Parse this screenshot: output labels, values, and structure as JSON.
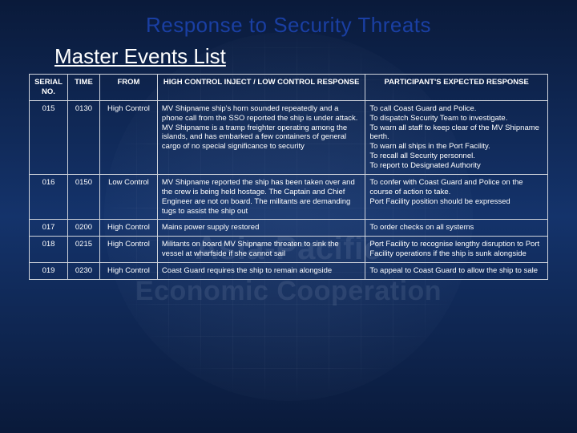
{
  "colors": {
    "bg_top": "#0a1a3a",
    "bg_mid": "#14336b",
    "title_color": "#1a3fa3",
    "subtitle_color": "#ffffff",
    "table_border": "#d0d4dc",
    "table_text": "#ffffff",
    "watermark_text": "rgba(220,230,245,0.10)"
  },
  "title": "Response to Security Threats",
  "subtitle": "Master Events List",
  "watermark": {
    "line1": "Asia-Pacific",
    "line2": "Economic Cooperation"
  },
  "table": {
    "headers": {
      "serial": "SERIAL NO.",
      "time": "TIME",
      "from": "FROM",
      "inject": "HIGH CONTROL INJECT / LOW CONTROL RESPONSE",
      "response": "PARTICIPANT'S EXPECTED RESPONSE"
    },
    "rows": [
      {
        "serial": "015",
        "time": "0130",
        "from": "High Control",
        "inject": "MV Shipname ship's horn sounded repeatedly and a phone call from the SSO reported the ship is under attack. MV Shipname is a tramp freighter operating among the islands, and has embarked a few containers of general cargo of no special significance to security",
        "response": "To call Coast Guard and Police.\nTo dispatch Security Team to investigate.\nTo warn all staff to keep clear of the MV Shipname berth.\nTo warn all ships in the Port Facility.\nTo recall all Security personnel.\nTo report to Designated Authority"
      },
      {
        "serial": "016",
        "time": "0150",
        "from": "Low Control",
        "inject": "MV Shipname reported the ship has been taken over and the crew is being held hostage. The Captain and Chief Engineer are not on board. The militants are demanding tugs to assist the ship out",
        "response": "To confer with Coast Guard and Police on the course of action to take.\nPort Facility position should be expressed"
      },
      {
        "serial": "017",
        "time": "0200",
        "from": "High Control",
        "inject": "Mains power supply restored",
        "response": "To order checks on all systems"
      },
      {
        "serial": "018",
        "time": "0215",
        "from": "High Control",
        "inject": "Militants on board MV Shipname threaten to sink the vessel at wharfside if she cannot sail",
        "response": "Port Facility to recognise lengthy disruption to Port Facility operations if the ship is sunk alongside"
      },
      {
        "serial": "019",
        "time": "0230",
        "from": "High Control",
        "inject": "Coast Guard requires the ship to remain alongside",
        "response": "To appeal to Coast Guard to allow the ship to sale"
      }
    ]
  }
}
